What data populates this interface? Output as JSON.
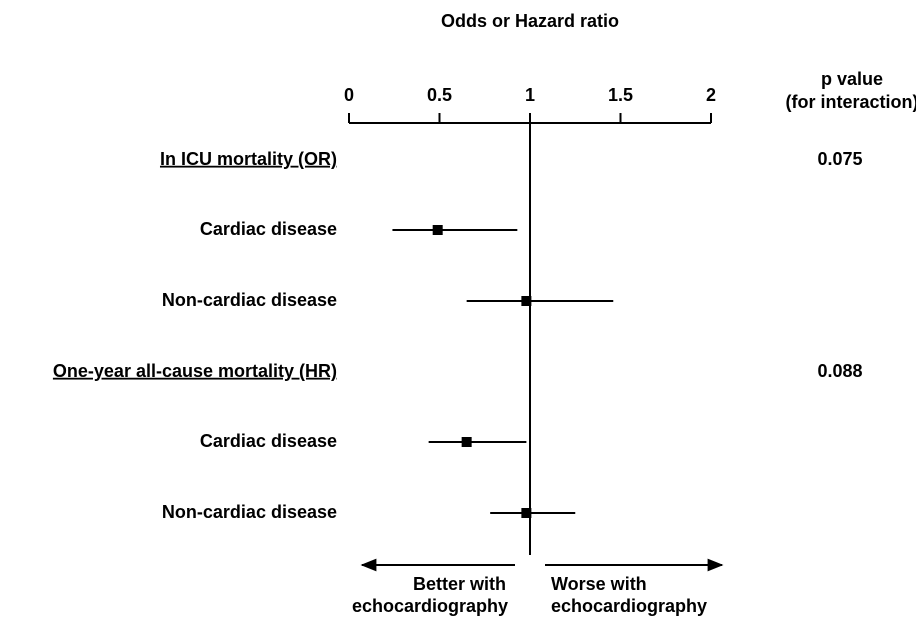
{
  "chart_data": {
    "type": "forest",
    "title": "Odds or Hazard ratio",
    "xlim": [
      0,
      2
    ],
    "xticks": [
      0,
      0.5,
      1,
      1.5,
      2
    ],
    "reference_line": 1,
    "p_value_header": [
      "p value",
      "(for interaction)"
    ],
    "groups": [
      {
        "label": "In ICU mortality (OR)",
        "p_value": 0.075,
        "rows": [
          {
            "label": "Cardiac disease",
            "estimate": 0.49,
            "lower": 0.24,
            "upper": 0.93
          },
          {
            "label": "Non-cardiac disease",
            "estimate": 0.98,
            "lower": 0.65,
            "upper": 1.46
          }
        ]
      },
      {
        "label": "One-year all-cause mortality (HR)",
        "p_value": 0.088,
        "rows": [
          {
            "label": "Cardiac disease",
            "estimate": 0.65,
            "lower": 0.44,
            "upper": 0.98
          },
          {
            "label": "Non-cardiac disease",
            "estimate": 0.98,
            "lower": 0.78,
            "upper": 1.25
          }
        ]
      }
    ],
    "left_arrow_label": [
      "Better with",
      "echocardiography"
    ],
    "right_arrow_label": [
      "Worse with",
      "echocardiography"
    ],
    "color": "#000000"
  }
}
